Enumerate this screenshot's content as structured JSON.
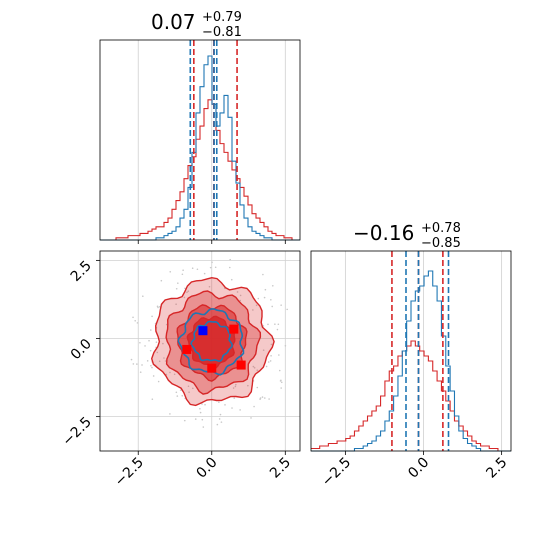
{
  "chart_data": {
    "type": "corner",
    "colors": {
      "blue": "#1f77b4",
      "red": "#d62728",
      "blue_marker": "#0000ff",
      "red_marker": "#ff0000",
      "grid": "#d0d0d0"
    },
    "params": [
      {
        "title": {
          "median": "0.07",
          "plus": "+0.79",
          "minus": "−0.81"
        },
        "range": [
          -3.8,
          3.0
        ],
        "ticks": [
          -2.5,
          0.0,
          2.5
        ],
        "tick_labels": [
          "−2.5",
          "0.0",
          "2.5"
        ]
      },
      {
        "title": {
          "median": "−0.16",
          "plus": "+0.78",
          "minus": "−0.85"
        },
        "range": [
          -3.6,
          2.8
        ],
        "ticks": [
          -2.5,
          0.0,
          2.5
        ],
        "tick_labels": [
          "−2.5",
          "0.0",
          "2.5"
        ]
      }
    ],
    "hist_x": {
      "bin_edges": [
        -3.8,
        3.0
      ],
      "blue_counts": [
        0,
        0,
        0,
        0,
        0,
        0,
        0,
        0,
        0,
        0,
        0,
        0,
        0,
        0,
        1,
        1,
        2,
        3,
        4,
        6,
        10,
        14,
        24,
        40,
        58,
        70,
        80,
        84,
        62,
        52,
        58,
        66,
        56,
        36,
        26,
        16,
        10,
        6,
        4,
        3,
        2,
        1,
        1,
        0,
        0,
        0,
        0,
        0,
        0,
        0
      ],
      "red_counts": [
        0,
        0,
        0,
        0,
        1,
        1,
        1,
        2,
        2,
        2,
        3,
        3,
        4,
        5,
        6,
        6,
        8,
        10,
        14,
        18,
        22,
        28,
        34,
        38,
        46,
        52,
        60,
        64,
        62,
        50,
        44,
        40,
        36,
        32,
        28,
        24,
        20,
        16,
        12,
        10,
        8,
        6,
        4,
        3,
        2,
        2,
        1,
        1,
        0,
        0
      ],
      "blue_quantiles": [
        -0.73,
        0.08,
        0.17
      ],
      "red_quantiles": [
        -0.61,
        0.07,
        0.86
      ]
    },
    "hist_y": {
      "bin_edges": [
        -3.6,
        2.8
      ],
      "blue_counts": [
        0,
        0,
        0,
        0,
        0,
        0,
        0,
        0,
        0,
        0,
        1,
        1,
        2,
        3,
        4,
        6,
        8,
        12,
        16,
        22,
        30,
        40,
        52,
        60,
        64,
        66,
        70,
        72,
        66,
        60,
        46,
        34,
        24,
        14,
        8,
        5,
        3,
        2,
        1,
        0,
        0,
        0,
        0,
        0,
        0,
        0
      ],
      "red_counts": [
        1,
        1,
        2,
        2,
        3,
        3,
        4,
        4,
        5,
        6,
        8,
        10,
        12,
        14,
        16,
        18,
        22,
        28,
        32,
        34,
        38,
        40,
        42,
        44,
        42,
        40,
        38,
        36,
        32,
        28,
        24,
        20,
        16,
        12,
        10,
        8,
        6,
        4,
        3,
        2,
        2,
        1,
        1,
        0,
        0,
        0
      ],
      "blue_quantiles": [
        -0.56,
        -0.16,
        0.8
      ],
      "red_quantiles": [
        -1.01,
        -0.16,
        0.62
      ]
    },
    "scatter_2d": {
      "red_contour_levels": [
        {
          "rx": 1.95,
          "ry": 1.95,
          "opacity": 0.25
        },
        {
          "rx": 1.55,
          "ry": 1.55,
          "opacity": 0.35
        },
        {
          "rx": 1.15,
          "ry": 1.15,
          "opacity": 0.55
        },
        {
          "rx": 0.78,
          "ry": 0.78,
          "opacity": 0.85
        }
      ],
      "blue_contour_levels": [
        {
          "rx": 1.05,
          "ry": 1.0
        },
        {
          "rx": 0.65,
          "ry": 0.62
        }
      ],
      "center": [
        0.0,
        -0.1
      ],
      "blue_markers": [
        [
          -0.3,
          0.25
        ]
      ],
      "red_markers": [
        [
          -0.85,
          -0.35
        ],
        [
          0.75,
          0.3
        ],
        [
          1.0,
          -0.85
        ],
        [
          0.0,
          -0.95
        ]
      ]
    }
  }
}
